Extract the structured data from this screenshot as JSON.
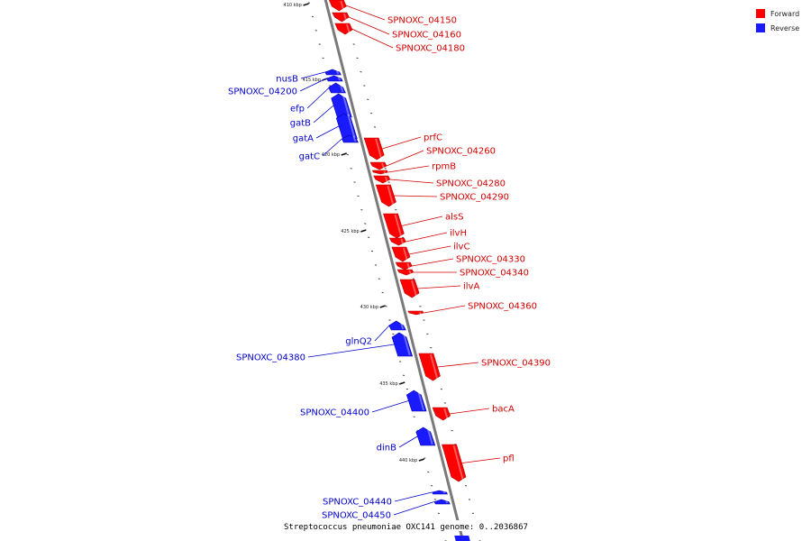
{
  "genome_caption": "Streptococcus pneumoniae OXC141 genome: 0..2036867",
  "legend": [
    {
      "label": "Forward",
      "color": "#ff0000"
    },
    {
      "label": "Reverse",
      "color": "#0000ff"
    }
  ],
  "colors": {
    "forward": "#ff0000",
    "reverse": "#1a1aff",
    "backbone": "#7a7a7a"
  },
  "ticks": [
    "410 kbp",
    "415 kbp",
    "420 kbp",
    "425 kbp",
    "430 kbp",
    "435 kbp",
    "440 kbp"
  ],
  "genes": [
    {
      "name": "SPNOXC_04150",
      "strand": "forward"
    },
    {
      "name": "SPNOXC_04160",
      "strand": "forward"
    },
    {
      "name": "SPNOXC_04180",
      "strand": "forward"
    },
    {
      "name": "nusB",
      "strand": "reverse"
    },
    {
      "name": "SPNOXC_04200",
      "strand": "reverse"
    },
    {
      "name": "efp",
      "strand": "reverse"
    },
    {
      "name": "gatB",
      "strand": "reverse"
    },
    {
      "name": "gatA",
      "strand": "reverse"
    },
    {
      "name": "gatC",
      "strand": "reverse"
    },
    {
      "name": "prfC",
      "strand": "forward"
    },
    {
      "name": "SPNOXC_04260",
      "strand": "forward"
    },
    {
      "name": "rpmB",
      "strand": "forward"
    },
    {
      "name": "SPNOXC_04280",
      "strand": "forward"
    },
    {
      "name": "SPNOXC_04290",
      "strand": "forward"
    },
    {
      "name": "alsS",
      "strand": "forward"
    },
    {
      "name": "ilvH",
      "strand": "forward"
    },
    {
      "name": "ilvC",
      "strand": "forward"
    },
    {
      "name": "SPNOXC_04330",
      "strand": "forward"
    },
    {
      "name": "SPNOXC_04340",
      "strand": "forward"
    },
    {
      "name": "ilvA",
      "strand": "forward"
    },
    {
      "name": "SPNOXC_04360",
      "strand": "forward"
    },
    {
      "name": "glnQ2",
      "strand": "reverse"
    },
    {
      "name": "SPNOXC_04380",
      "strand": "reverse"
    },
    {
      "name": "SPNOXC_04390",
      "strand": "forward"
    },
    {
      "name": "SPNOXC_04400",
      "strand": "reverse"
    },
    {
      "name": "bacA",
      "strand": "forward"
    },
    {
      "name": "dinB",
      "strand": "reverse"
    },
    {
      "name": "pfl",
      "strand": "forward"
    },
    {
      "name": "SPNOXC_04440",
      "strand": "reverse"
    },
    {
      "name": "SPNOXC_04450",
      "strand": "reverse"
    }
  ]
}
